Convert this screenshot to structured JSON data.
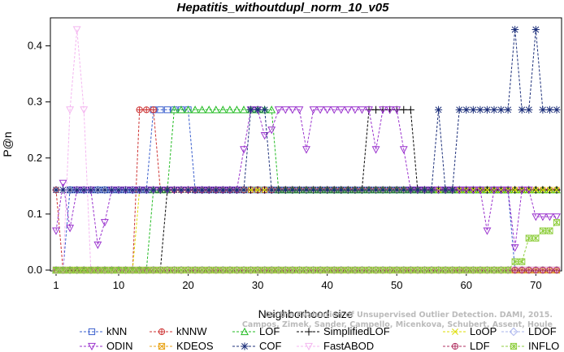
{
  "chart_data": {
    "type": "line",
    "title": "Hepatitis_withoutdupl_norm_10_v05",
    "xlabel": "Neighborhood size",
    "ylabel": "P@n",
    "xlim": [
      1,
      73
    ],
    "ylim": [
      0,
      0.45
    ],
    "xticks": [
      1,
      10,
      20,
      30,
      40,
      50,
      60,
      70
    ],
    "yticks": [
      0.0,
      0.1,
      0.2,
      0.3,
      0.4
    ],
    "ytick_labels": [
      "0.0",
      "0.1",
      "0.2",
      "0.3",
      "0.4"
    ],
    "grid": false,
    "legend_position": "bottom",
    "watermark_lines": [
      "On the Evaluation of Unsupervised Outlier Detection. DAMI, 2015.",
      "Campos, Zimek, Sander, Campello, Micenkova, Schubert, Assent, Houle"
    ],
    "series": [
      {
        "name": "kNN",
        "color": "#3a5fcd",
        "marker": "square",
        "segments": [
          [
            1,
            2,
            0.0
          ],
          [
            3,
            14,
            0.143
          ],
          [
            15,
            20,
            0.286
          ],
          [
            21,
            66,
            0.143
          ],
          [
            67,
            73,
            0.0
          ]
        ]
      },
      {
        "name": "kNNW",
        "color": "#cd3333",
        "marker": "circle-plus",
        "segments": [
          [
            1,
            1,
            0.143
          ],
          [
            2,
            12,
            0.0
          ],
          [
            13,
            15,
            0.286
          ],
          [
            16,
            73,
            0.143
          ]
        ]
      },
      {
        "name": "LOF",
        "color": "#22bb22",
        "marker": "triangle",
        "segments": [
          [
            1,
            14,
            0.0
          ],
          [
            15,
            17,
            0.143
          ],
          [
            18,
            32,
            0.286
          ],
          [
            33,
            73,
            0.143
          ]
        ]
      },
      {
        "name": "SimplifiedLOF",
        "color": "#000000",
        "marker": "plus",
        "segments": [
          [
            1,
            16,
            0.0
          ],
          [
            17,
            24,
            0.143
          ],
          [
            25,
            45,
            0.143
          ],
          [
            46,
            52,
            0.286
          ],
          [
            53,
            73,
            0.143
          ]
        ]
      },
      {
        "name": "LoOP",
        "color": "#dddd00",
        "marker": "x",
        "segments": [
          [
            1,
            12,
            0.0
          ],
          [
            13,
            50,
            0.143
          ],
          [
            51,
            73,
            0.143
          ]
        ]
      },
      {
        "name": "LDOF",
        "color": "#aab4ee",
        "marker": "diamond",
        "segments": [
          [
            1,
            73,
            0.0
          ]
        ]
      },
      {
        "name": "ODIN",
        "color": "#9a32cd",
        "marker": "triangle-down",
        "segments": [
          [
            1,
            1,
            0.07
          ],
          [
            2,
            2,
            0.155
          ],
          [
            3,
            3,
            0.075
          ],
          [
            4,
            6,
            0.143
          ],
          [
            7,
            7,
            0.045
          ],
          [
            8,
            8,
            0.085
          ],
          [
            9,
            27,
            0.143
          ],
          [
            28,
            28,
            0.215
          ],
          [
            29,
            30,
            0.286
          ],
          [
            31,
            31,
            0.24
          ],
          [
            32,
            32,
            0.25
          ],
          [
            33,
            36,
            0.286
          ],
          [
            37,
            37,
            0.215
          ],
          [
            38,
            46,
            0.286
          ],
          [
            47,
            47,
            0.215
          ],
          [
            48,
            50,
            0.286
          ],
          [
            51,
            51,
            0.215
          ],
          [
            52,
            62,
            0.143
          ],
          [
            63,
            63,
            0.07
          ],
          [
            64,
            66,
            0.143
          ],
          [
            67,
            67,
            0.04
          ],
          [
            68,
            69,
            0.143
          ],
          [
            70,
            73,
            0.095
          ]
        ]
      },
      {
        "name": "KDEOS",
        "color": "#e8a317",
        "marker": "square-x",
        "segments": [
          [
            1,
            73,
            0.0
          ]
        ]
      },
      {
        "name": "COF",
        "color": "#1c2f7a",
        "marker": "asterisk",
        "segments": [
          [
            1,
            20,
            0.143
          ],
          [
            21,
            28,
            0.143
          ],
          [
            29,
            31,
            0.286
          ],
          [
            32,
            55,
            0.143
          ],
          [
            56,
            56,
            0.286
          ],
          [
            57,
            58,
            0.143
          ],
          [
            59,
            66,
            0.286
          ],
          [
            67,
            67,
            0.429
          ],
          [
            68,
            69,
            0.286
          ],
          [
            70,
            70,
            0.429
          ],
          [
            71,
            73,
            0.286
          ]
        ]
      },
      {
        "name": "FastABOD",
        "color": "#f4b6f0",
        "marker": "triangle-down-open",
        "segments": [
          [
            1,
            2,
            0.0
          ],
          [
            3,
            3,
            0.286
          ],
          [
            4,
            4,
            0.429
          ],
          [
            5,
            5,
            0.286
          ],
          [
            6,
            73,
            0.0
          ]
        ]
      },
      {
        "name": "LDF",
        "color": "#b03060",
        "marker": "circle-plus",
        "segments": [
          [
            1,
            55,
            0.0
          ],
          [
            56,
            73,
            0.0
          ]
        ]
      },
      {
        "name": "INFLO",
        "color": "#8fce3f",
        "marker": "square-star",
        "segments": [
          [
            1,
            66,
            0.0
          ],
          [
            67,
            68,
            0.015
          ],
          [
            69,
            70,
            0.057
          ],
          [
            71,
            72,
            0.07
          ],
          [
            73,
            73,
            0.085
          ]
        ]
      }
    ]
  }
}
